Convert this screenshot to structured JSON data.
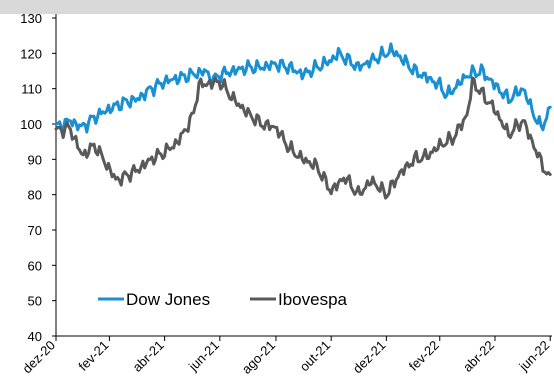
{
  "chart_data": {
    "type": "line",
    "title": "",
    "xlabel": "",
    "ylabel": "",
    "ylim": [
      40,
      130
    ],
    "y_ticks": [
      40,
      50,
      60,
      70,
      80,
      90,
      100,
      110,
      120,
      130
    ],
    "x_tick_labels": [
      "dez-20",
      "fev-21",
      "abr-21",
      "jun-21",
      "ago-21",
      "out-21",
      "dez-21",
      "fev-22",
      "abr-22",
      "jun-22"
    ],
    "x_tick_dates": [
      "2020-12-31",
      "2021-02-28",
      "2021-04-30",
      "2021-06-30",
      "2021-08-31",
      "2021-10-31",
      "2021-12-31",
      "2022-02-28",
      "2022-04-30",
      "2022-06-30"
    ],
    "grid": false,
    "legend_position": "bottom-left",
    "series": [
      {
        "name": "Dow Jones",
        "color": "#1a8fd1",
        "points": [
          [
            "2020-12-31",
            99
          ],
          [
            "2021-01-15",
            101
          ],
          [
            "2021-01-29",
            99
          ],
          [
            "2021-02-12",
            102
          ],
          [
            "2021-02-26",
            104
          ],
          [
            "2021-03-15",
            106
          ],
          [
            "2021-03-31",
            107
          ],
          [
            "2021-04-15",
            110
          ],
          [
            "2021-04-30",
            112
          ],
          [
            "2021-05-15",
            113
          ],
          [
            "2021-05-31",
            114
          ],
          [
            "2021-06-15",
            115
          ],
          [
            "2021-06-21",
            112
          ],
          [
            "2021-06-30",
            114
          ],
          [
            "2021-07-15",
            115
          ],
          [
            "2021-07-31",
            116
          ],
          [
            "2021-08-15",
            116
          ],
          [
            "2021-08-31",
            117
          ],
          [
            "2021-09-15",
            116
          ],
          [
            "2021-09-30",
            114
          ],
          [
            "2021-10-15",
            116
          ],
          [
            "2021-10-31",
            118
          ],
          [
            "2021-11-08",
            120
          ],
          [
            "2021-11-30",
            116
          ],
          [
            "2021-12-15",
            118
          ],
          [
            "2021-12-31",
            120
          ],
          [
            "2022-01-05",
            121
          ],
          [
            "2022-01-15",
            119
          ],
          [
            "2022-01-31",
            115
          ],
          [
            "2022-02-15",
            113
          ],
          [
            "2022-02-28",
            111
          ],
          [
            "2022-03-08",
            108
          ],
          [
            "2022-03-31",
            114
          ],
          [
            "2022-04-15",
            115
          ],
          [
            "2022-04-30",
            111
          ],
          [
            "2022-05-15",
            107
          ],
          [
            "2022-05-31",
            110
          ],
          [
            "2022-06-15",
            101
          ],
          [
            "2022-06-20",
            99
          ],
          [
            "2022-06-30",
            104
          ]
        ]
      },
      {
        "name": "Ibovespa",
        "color": "#595959",
        "points": [
          [
            "2020-12-31",
            98
          ],
          [
            "2021-01-15",
            99
          ],
          [
            "2021-01-29",
            91
          ],
          [
            "2021-02-12",
            94
          ],
          [
            "2021-02-26",
            88
          ],
          [
            "2021-03-08",
            84
          ],
          [
            "2021-03-31",
            87
          ],
          [
            "2021-04-15",
            90
          ],
          [
            "2021-04-30",
            92
          ],
          [
            "2021-05-15",
            95
          ],
          [
            "2021-05-31",
            102
          ],
          [
            "2021-06-07",
            111
          ],
          [
            "2021-06-30",
            112
          ],
          [
            "2021-07-15",
            107
          ],
          [
            "2021-07-31",
            103
          ],
          [
            "2021-08-15",
            100
          ],
          [
            "2021-08-31",
            99
          ],
          [
            "2021-09-15",
            93
          ],
          [
            "2021-09-30",
            90
          ],
          [
            "2021-10-15",
            88
          ],
          [
            "2021-10-31",
            81
          ],
          [
            "2021-11-15",
            85
          ],
          [
            "2021-11-30",
            80
          ],
          [
            "2021-12-15",
            84
          ],
          [
            "2021-12-31",
            80
          ],
          [
            "2022-01-15",
            86
          ],
          [
            "2022-01-31",
            90
          ],
          [
            "2022-02-15",
            91
          ],
          [
            "2022-02-28",
            94
          ],
          [
            "2022-03-15",
            96
          ],
          [
            "2022-03-31",
            103
          ],
          [
            "2022-04-05",
            112
          ],
          [
            "2022-04-30",
            104
          ],
          [
            "2022-05-15",
            97
          ],
          [
            "2022-05-31",
            101
          ],
          [
            "2022-06-15",
            92
          ],
          [
            "2022-06-30",
            84
          ]
        ]
      }
    ]
  }
}
